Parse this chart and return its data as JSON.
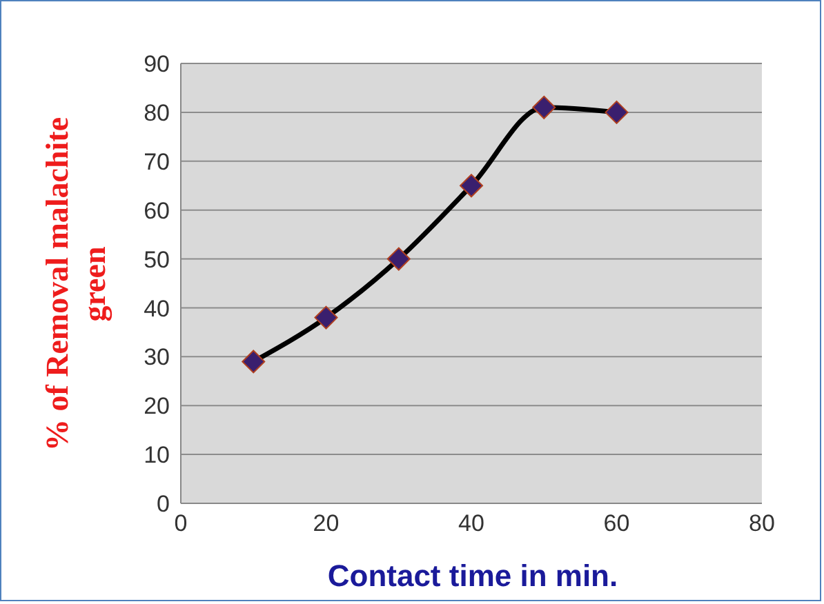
{
  "chart_data": {
    "type": "line",
    "xlabel": "Contact time in min.",
    "ylabel": "% of Removal malachite green",
    "x": [
      10,
      20,
      30,
      40,
      50,
      60
    ],
    "series": [
      {
        "color": "#000000",
        "values": [
          29,
          38,
          50,
          65,
          81,
          80
        ]
      }
    ],
    "xlim": [
      0,
      80
    ],
    "xticks": [
      0,
      20,
      40,
      60,
      80
    ],
    "ylim": [
      0,
      90
    ],
    "yticks": [
      0,
      10,
      20,
      30,
      40,
      50,
      60,
      70,
      80,
      90
    ],
    "grid": "y",
    "marker": "diamond",
    "line_style": "solid"
  }
}
